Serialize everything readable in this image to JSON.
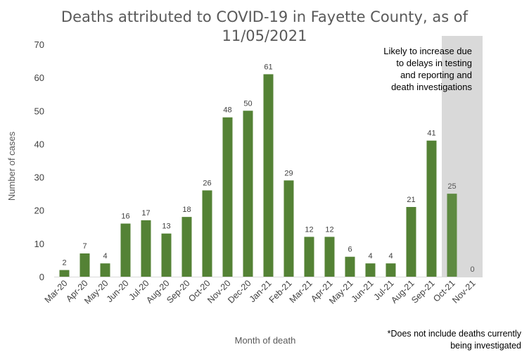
{
  "chart_data": {
    "type": "bar",
    "title_lines": [
      "Deaths attributed to COVID-19 in Fayette County, as of",
      "11/05/2021"
    ],
    "xlabel": "Month of death",
    "ylabel": "Number of cases",
    "ylim": [
      0,
      70
    ],
    "yticks": [
      0,
      10,
      20,
      30,
      40,
      50,
      60,
      70
    ],
    "grid": false,
    "categories": [
      "Mar-20",
      "Apr-20",
      "May-20",
      "Jun-20",
      "Jul-20",
      "Aug-20",
      "Sep-20",
      "Oct-20",
      "Nov-20",
      "Dec-20",
      "Jan-21",
      "Feb-21",
      "Mar-21",
      "Apr-21",
      "May-21",
      "Jun-21",
      "Jul-21",
      "Aug-21",
      "Sep-21",
      "Oct-21",
      "Nov-21"
    ],
    "values": [
      2,
      7,
      4,
      16,
      17,
      13,
      18,
      26,
      48,
      50,
      61,
      29,
      12,
      12,
      6,
      4,
      4,
      21,
      41,
      25,
      0
    ],
    "data_labels": [
      "2",
      "7",
      "4",
      "16",
      "17",
      "13",
      "18",
      "26",
      "48",
      "50",
      "61",
      "29",
      "12",
      "12",
      "6",
      "4",
      "4",
      "21",
      "41",
      "25",
      "0"
    ],
    "bar_color": "#548235",
    "shaded_region": {
      "categories": [
        "Oct-21",
        "Nov-21"
      ],
      "color": "#d9d9d9",
      "note_lines": [
        "Likely to increase due",
        "to delays in testing",
        "and reporting and",
        "death investigations"
      ]
    },
    "footnote_lines": [
      "*Does not include deaths currently",
      "being investigated"
    ]
  }
}
